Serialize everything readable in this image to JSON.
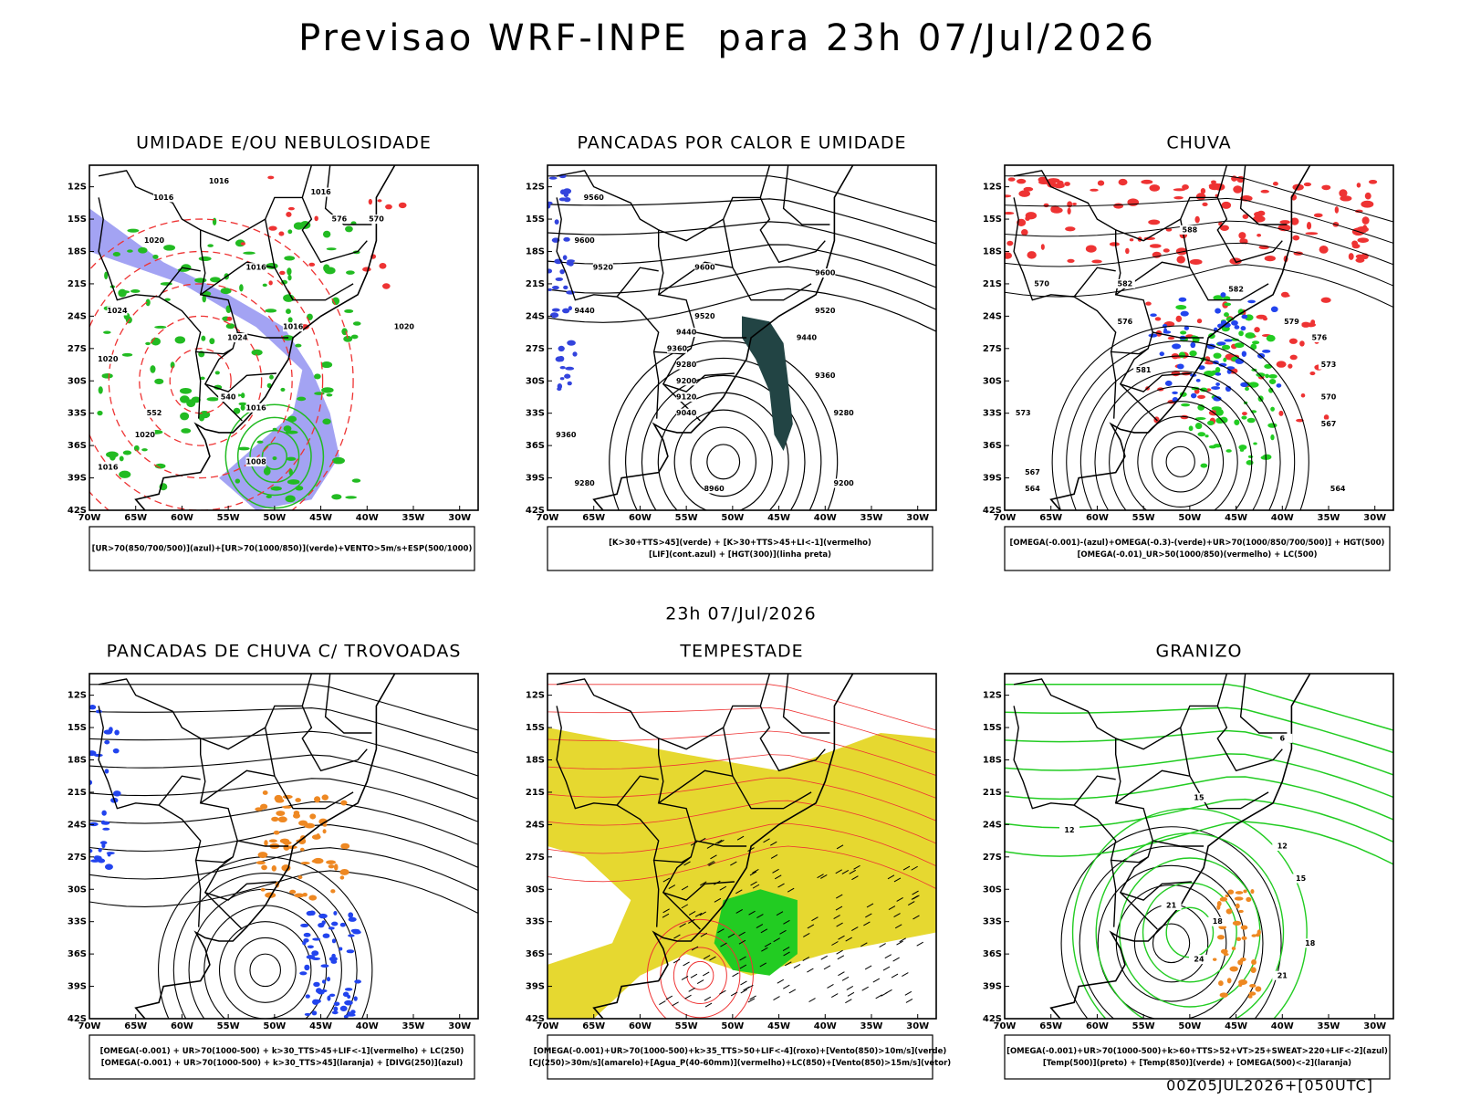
{
  "header": {
    "title": "Previsao WRF-INPE  para 23h 07/Jul/2026",
    "subtitle": "23h 07/Jul/2026",
    "footer": "00Z05JUL2026+[050UTC]"
  },
  "axes": {
    "lat_labels": [
      "12S",
      "15S",
      "18S",
      "21S",
      "24S",
      "27S",
      "30S",
      "33S",
      "36S",
      "39S",
      "42S"
    ],
    "lon_labels": [
      "70W",
      "65W",
      "60W",
      "55W",
      "50W",
      "45W",
      "40W",
      "35W",
      "30W"
    ]
  },
  "panels": [
    {
      "title": "UMIDADE E/OU NEBULOSIDADE",
      "legend": [
        "[UR>70(850/700/500)](azul)+[UR>70(1000/850)](verde)+VENTO>5m/s+ESP(500/1000)"
      ],
      "contour_labels": [
        "1016",
        "1016",
        "1016",
        "1020",
        "1016",
        "1024",
        "1024",
        "1016",
        "1020",
        "1016",
        "1020",
        "1008",
        "1016",
        "570",
        "576",
        "552",
        "540",
        "1020"
      ]
    },
    {
      "title": "PANCADAS POR CALOR E UMIDADE",
      "legend": [
        "[K>30+TTS>45](verde) + [K>30+TTS>45+LI<-1](vermelho)",
        "[LIF](cont.azul) + [HGT(300)](linha preta)"
      ],
      "contour_labels": [
        "9560",
        "9600",
        "9520",
        "9440",
        "9600",
        "9600",
        "9520",
        "9520",
        "9440",
        "9440",
        "9360",
        "9360",
        "9280",
        "9200",
        "9120",
        "9040",
        "9280",
        "9360",
        "9280",
        "9200",
        "8960"
      ]
    },
    {
      "title": "CHUVA",
      "legend": [
        "[OMEGA(-0.001)-(azul)+OMEGA(-0.3)-(verde)+UR>70(1000/850/700/500)] + HGT(500)",
        "[OMEGA(-0.01)_UR>50(1000/850)(vermelho) + LC(500)"
      ],
      "contour_labels": [
        "588",
        "582",
        "576",
        "570",
        "564",
        "582",
        "579",
        "576",
        "573",
        "570",
        "567",
        "564",
        "581",
        "567",
        "573"
      ]
    },
    {
      "title": "PANCADAS DE CHUVA C/ TROVOADAS",
      "legend": [
        "[OMEGA(-0.001) + UR>70(1000-500) + k>30_TTS>45+LIF<-1](vermelho) + LC(250)",
        "[OMEGA(-0.001) + UR>70(1000-500) + k>30_TTS>45](laranja) + [DIVG(250)](azul)"
      ],
      "contour_labels": []
    },
    {
      "title": "TEMPESTADE",
      "legend": [
        "[OMEGA(-0.001)+UR>70(1000-500)+k>35_TTS>50+LIF<-4](roxo)+[Vento(850)>10m/s](verde)",
        "[CJ(250)>30m/s](amarelo)+[Agua_P(40-60mm)](vermelho)+LC(850)+[Vento(850)>15m/s](vetor)"
      ],
      "contour_labels": []
    },
    {
      "title": "GRANIZO",
      "legend": [
        "[OMEGA(-0.001)+UR>70(1000-500)+k>60+TTS>52+VT>25+SWEAT>220+LIF<-2](azul)",
        "[Temp(500)](preto) + [Temp(850)](verde) + [OMEGA(500)<-2](laranja)"
      ],
      "contour_labels": [
        "12",
        "12",
        "15",
        "15",
        "18",
        "18",
        "21",
        "21",
        "24",
        "6"
      ]
    }
  ]
}
